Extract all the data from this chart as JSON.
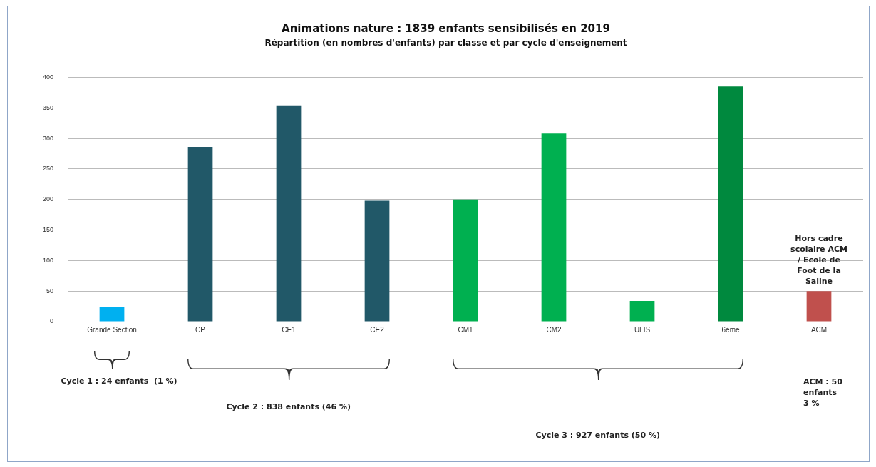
{
  "chart_data": {
    "type": "bar",
    "title": "Animations nature : 1839 enfants sensibilisés en 2019",
    "subtitle": "Répartition (en nombres d'enfants) par classe et par cycle d'enseignement",
    "categories": [
      "Grande Section",
      "CP",
      "CE1",
      "CE2",
      "CM1",
      "CM2",
      "ULIS",
      "6ème",
      "ACM"
    ],
    "values": [
      24,
      286,
      354,
      198,
      200,
      308,
      34,
      385,
      50
    ],
    "colors": [
      "#00b0f0",
      "#215868",
      "#215868",
      "#215868",
      "#00b050",
      "#00b050",
      "#00b050",
      "#00893e",
      "#c0504d"
    ],
    "ylim": [
      0,
      400
    ],
    "yticks": [
      0,
      50,
      100,
      150,
      200,
      250,
      300,
      350,
      400
    ],
    "grid": "y",
    "legend": false,
    "annotations": [
      {
        "text": "Hors cadre scolaire ACM / Ecole de Foot de la Saline",
        "x": "ACM",
        "y": 50
      },
      "Cycle 1 : 24 enfants  (1 %)",
      "Cycle 2 : 838 enfants (46 %)",
      "Cycle 3 : 927 enfants (50 %)",
      "ACM : 50 enfants 3 %"
    ]
  }
}
